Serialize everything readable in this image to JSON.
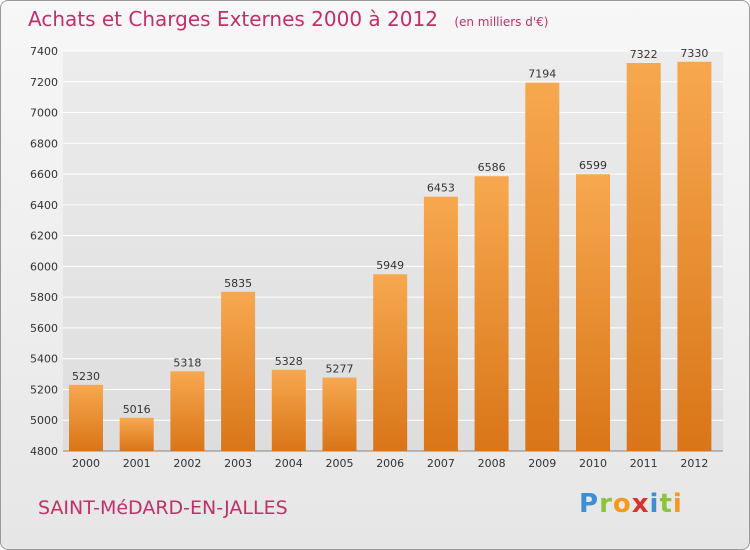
{
  "header": {
    "title": "Achats et Charges Externes 2000 à 2012",
    "unit": "(en milliers d'€)"
  },
  "footer": {
    "city": "SAINT-MéDARD-EN-JALLES",
    "logo": "Proxiti"
  },
  "colors": {
    "title": "#c0306a",
    "bar_light": "#f7a84f",
    "bar_dark": "#d97518",
    "grid": "#ffffff",
    "axis_text": "#333333"
  },
  "chart_data": {
    "type": "bar",
    "title": "Achats et Charges Externes 2000 à 2012",
    "subtitle": "(en milliers d'€)",
    "categories": [
      "2000",
      "2001",
      "2002",
      "2003",
      "2004",
      "2005",
      "2006",
      "2007",
      "2008",
      "2009",
      "2010",
      "2011",
      "2012"
    ],
    "values": [
      5230,
      5016,
      5318,
      5835,
      5328,
      5277,
      5949,
      6453,
      6586,
      7194,
      6599,
      7322,
      7330
    ],
    "ylim": [
      4800,
      7400
    ],
    "yticks": [
      4800,
      5000,
      5200,
      5400,
      5600,
      5800,
      6000,
      6200,
      6400,
      6600,
      6800,
      7000,
      7200,
      7400
    ],
    "grid": true,
    "data_labels": true
  }
}
